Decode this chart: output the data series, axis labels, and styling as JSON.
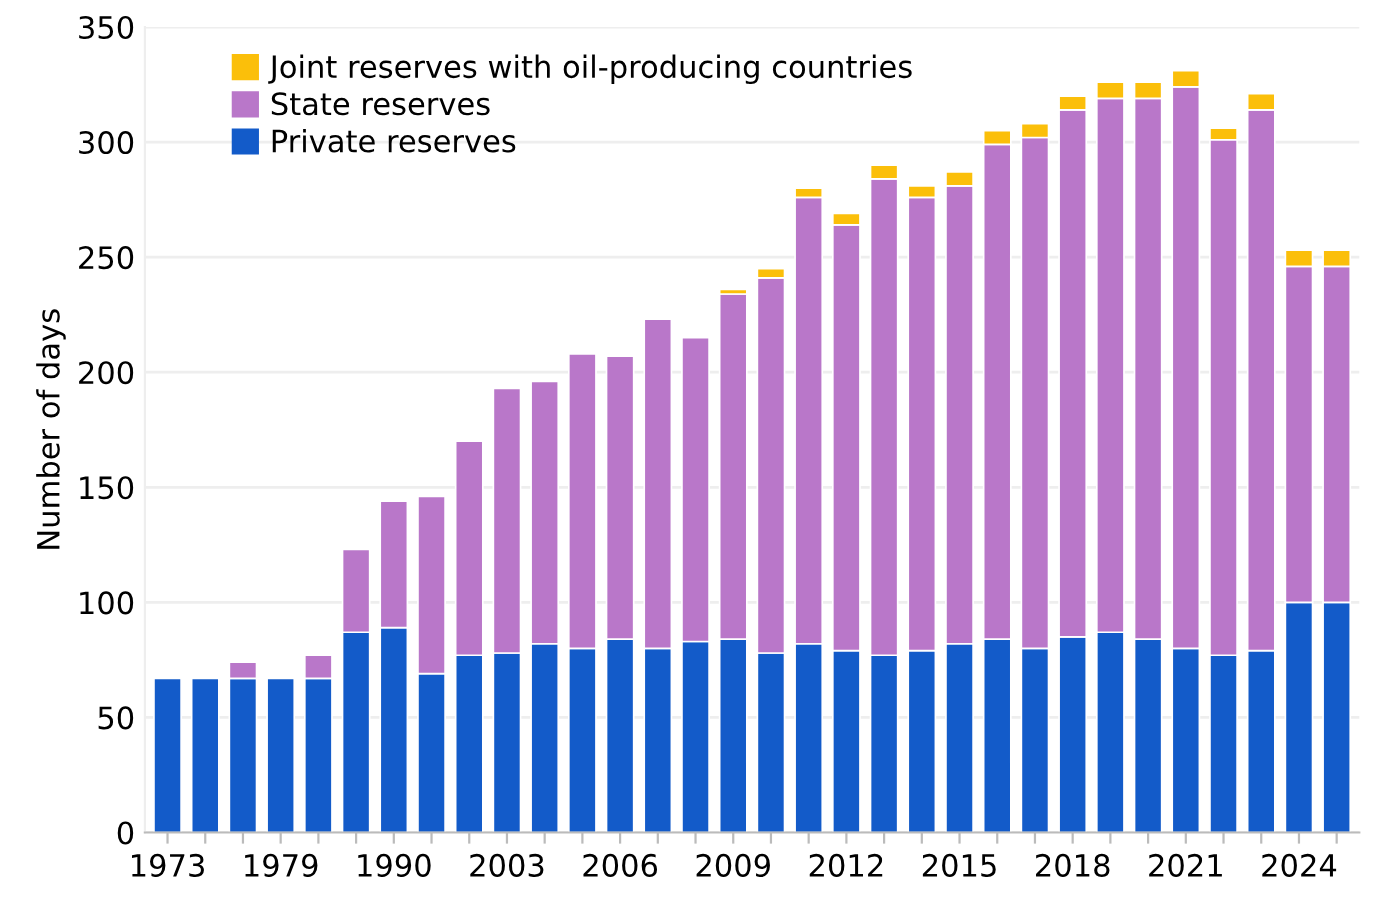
{
  "chart_data": {
    "type": "bar",
    "stacked": true,
    "ylabel": "Number of days",
    "categories": [
      "1973",
      null,
      null,
      "1979",
      null,
      null,
      "1990",
      null,
      null,
      "2003",
      null,
      null,
      "2006",
      null,
      null,
      "2009",
      null,
      null,
      "2012",
      null,
      null,
      "2015",
      null,
      null,
      "2018",
      null,
      null,
      "2021",
      null,
      null,
      "2024",
      null
    ],
    "series": [
      {
        "name": "Private reserves",
        "color": "#135bc9",
        "values": [
          67,
          67,
          67,
          67,
          67,
          87,
          89,
          69,
          77,
          78,
          82,
          80,
          84,
          80,
          83,
          84,
          78,
          82,
          79,
          77,
          79,
          82,
          84,
          80,
          85,
          87,
          84,
          80,
          77,
          79,
          100,
          100
        ]
      },
      {
        "name": "State reserves",
        "color": "#b977c9",
        "values": [
          null,
          null,
          7,
          null,
          10,
          36,
          55,
          77,
          93,
          115,
          114,
          128,
          123,
          143,
          132,
          150,
          163,
          194,
          185,
          207,
          197,
          199,
          215,
          222,
          229,
          232,
          235,
          244,
          224,
          235,
          146,
          146
        ]
      },
      {
        "name": "Joint reserves with oil-producing countries",
        "color": "#fbbf0a",
        "values": [
          null,
          null,
          null,
          null,
          null,
          null,
          null,
          null,
          null,
          null,
          null,
          null,
          null,
          null,
          null,
          2,
          4,
          4,
          5,
          6,
          5,
          6,
          6,
          6,
          6,
          7,
          7,
          7,
          5,
          7,
          7,
          7
        ]
      }
    ],
    "ylim": [
      0,
      350
    ],
    "yticks": [
      0,
      50,
      100,
      150,
      200,
      250,
      300,
      350
    ],
    "grid": "y",
    "legend": "top left"
  }
}
